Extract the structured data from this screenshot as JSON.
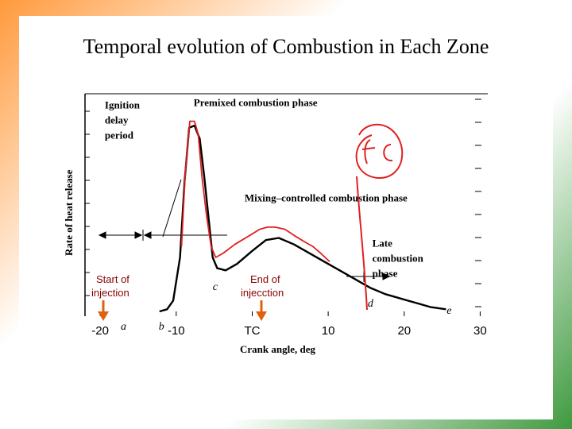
{
  "slide": {
    "title": "Temporal evolution of Combustion in Each  Zone"
  },
  "chart_data": {
    "type": "line",
    "xlabel": "Crank angle, deg",
    "ylabel": "Rate of heat release",
    "x_ticks": [
      "-20",
      "-10",
      "TC",
      "10",
      "20",
      "30"
    ],
    "x_tick_values": [
      -20,
      -10,
      0,
      10,
      20,
      30
    ],
    "xlim": [
      -22,
      31
    ],
    "ylim": [
      0,
      1.0
    ],
    "point_letters": [
      "a",
      "b",
      "c",
      "d",
      "e"
    ],
    "point_letter_x": [
      -17.3,
      -12.3,
      -5.2,
      15.2,
      25.6
    ],
    "series": [
      {
        "color": "#000000",
        "x": [
          -12.2,
          -11.2,
          -10.4,
          -9.5,
          -8.9,
          -8.3,
          -7.6,
          -6.9,
          -6.3,
          -5.7,
          -5.2,
          -4.6,
          -3.5,
          -2.0,
          0.0,
          1.8,
          3.5,
          5.5,
          7.5,
          9.5,
          11.5,
          13.5,
          15.5,
          17.5,
          19.5,
          21.5,
          23.5,
          25.5
        ],
        "y": [
          0.0,
          0.01,
          0.05,
          0.25,
          0.6,
          0.85,
          0.86,
          0.8,
          0.62,
          0.42,
          0.25,
          0.2,
          0.19,
          0.22,
          0.28,
          0.33,
          0.34,
          0.31,
          0.27,
          0.23,
          0.19,
          0.15,
          0.11,
          0.08,
          0.06,
          0.04,
          0.02,
          0.01
        ]
      },
      {
        "color": "#e02020",
        "x": [
          -9.3,
          -8.8,
          -8.2,
          -7.6,
          -7.1,
          -6.6,
          -6.0,
          -5.4,
          -4.8,
          -3.8,
          -2.3,
          -0.4,
          1.0,
          2.0,
          3.0,
          4.3,
          5.6,
          7.0,
          8.0,
          9.0,
          10.2
        ],
        "y": [
          0.3,
          0.65,
          0.88,
          0.88,
          0.82,
          0.62,
          0.44,
          0.3,
          0.25,
          0.27,
          0.31,
          0.35,
          0.38,
          0.39,
          0.39,
          0.38,
          0.35,
          0.32,
          0.3,
          0.27,
          0.23
        ]
      }
    ],
    "annotations": [
      {
        "text": "Ignition",
        "x": -19.4,
        "y": 0.94,
        "style": "bold"
      },
      {
        "text": "delay",
        "x": -19.4,
        "y": 0.87,
        "style": "bold"
      },
      {
        "text": "period",
        "x": -19.4,
        "y": 0.8,
        "style": "bold"
      },
      {
        "text": "Premixed combustion phase",
        "x": -7.7,
        "y": 0.95,
        "style": "bold"
      },
      {
        "text": "Mixing–controlled combustion phase",
        "x": -1.0,
        "y": 0.51,
        "style": "bold"
      },
      {
        "text": "Late",
        "x": 15.8,
        "y": 0.3,
        "style": "bold"
      },
      {
        "text": "combustion",
        "x": 15.8,
        "y": 0.23,
        "style": "bold"
      },
      {
        "text": "phase",
        "x": 15.8,
        "y": 0.16,
        "style": "bold"
      }
    ],
    "handwritten_note": "fc"
  },
  "overlay_labels": {
    "start_line1": "Start of",
    "start_line2": "injection",
    "end_line1": "End of",
    "end_line2": "injecction"
  },
  "colors": {
    "arrow": "#e06010",
    "handwriting": "#e02020",
    "annotation": "#8b0000"
  }
}
